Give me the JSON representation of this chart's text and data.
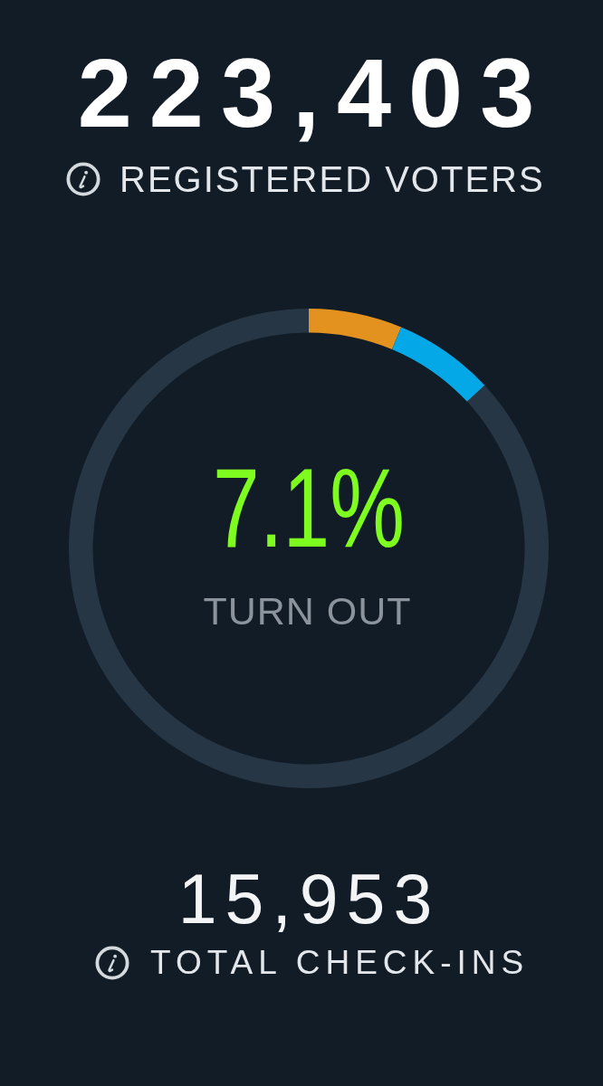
{
  "chart_data": {
    "type": "donut",
    "categories": [
      null,
      null,
      null
    ],
    "values": [
      6.3,
      6.8,
      86.9
    ],
    "colors": [
      "#e3921f",
      "#05a8e6",
      "#263645"
    ],
    "annotations": [
      "223,403",
      "REGISTERED VOTERS",
      "7.1%",
      "TURN OUT",
      "15,953",
      "TOTAL CHECK-INS"
    ]
  }
}
